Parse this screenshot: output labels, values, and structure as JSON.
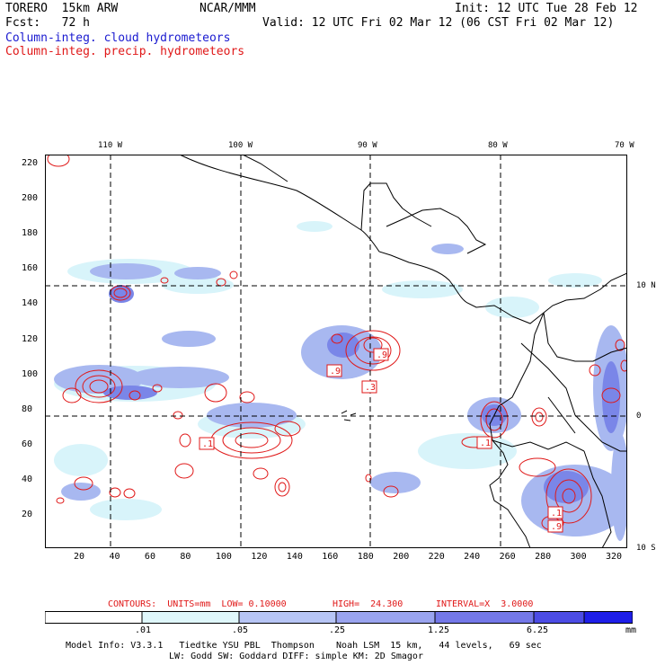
{
  "header": {
    "model": "TORERO  15km ARW",
    "org": "NCAR/MMM",
    "init": "Init: 12 UTC Tue 28 Feb 12",
    "fcst": "Fcst:   72 h",
    "valid": "Valid: 12 UTC Fri 02 Mar 12 (06 CST Fri 02 Mar 12)",
    "field1": "Column-integ. cloud hydrometeors",
    "field2": "Column-integ. precip. hydrometeors"
  },
  "map": {
    "lon_labels": [
      "110 W",
      "100 W",
      "90 W",
      "80 W",
      "70 W"
    ],
    "lat_labels": [
      "10 N",
      "0",
      "10 S"
    ],
    "y_ticks": [
      "220",
      "200",
      "180",
      "160",
      "140",
      "120",
      "100",
      "80",
      "60",
      "40",
      "20"
    ],
    "x_ticks": [
      "20",
      "40",
      "60",
      "80",
      "100",
      "120",
      "140",
      "160",
      "180",
      "200",
      "220",
      "240",
      "260",
      "280",
      "300",
      "320"
    ],
    "box_labels": [
      ".1",
      ".9",
      ".9",
      ".3",
      ".1",
      ".1",
      ".9"
    ],
    "colors": {
      "cloud_light": "#d8f4fa",
      "cloud_mid": "#a8b8f0",
      "cloud_dark": "#7a86e8",
      "precip": "#e01818",
      "coast": "#000000",
      "grid": "#000000"
    }
  },
  "contour_info": {
    "contours": "CONTOURS:  UNITS=mm  LOW= 0.10000",
    "high": "HIGH=  24.300",
    "interval": "INTERVAL=X  3.0000"
  },
  "colorbar": {
    "labels": [
      ".01",
      ".05",
      ".25",
      "1.25",
      "6.25"
    ],
    "units": "mm",
    "colors": [
      "#ffffff",
      "#dff7fb",
      "#b7c5f5",
      "#9aa4ef",
      "#7478e8",
      "#4c4ce4",
      "#1e1ee8"
    ]
  },
  "footer": {
    "line1": "Model Info: V3.3.1   Tiedtke YSU PBL  Thompson    Noah LSM  15 km,   44 levels,   69 sec",
    "line2": "LW: Godd SW: Goddard DIFF: simple KM: 2D Smagor"
  }
}
